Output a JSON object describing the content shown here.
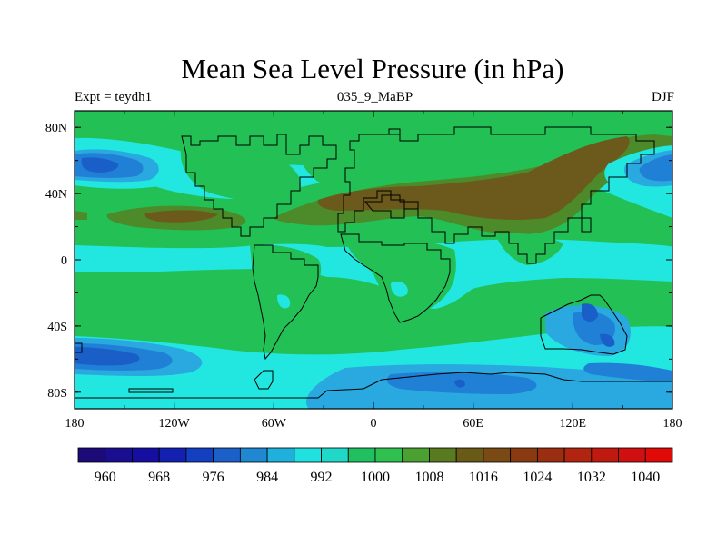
{
  "map": {
    "title": "Mean Sea Level Pressure (in hPa)",
    "left_label": "Expt = teydh1",
    "center_label": "035_9_MaBP",
    "right_label": "DJF",
    "x_ticks": [
      "180",
      "120W",
      "60W",
      "0",
      "60E",
      "120E",
      "180"
    ],
    "y_ticks": [
      "80N",
      "40N",
      "0",
      "40S",
      "80S"
    ],
    "lon_range": [
      -180,
      180
    ],
    "lat_range": [
      -90,
      90
    ]
  },
  "colorbar": {
    "labels": [
      "960",
      "968",
      "976",
      "984",
      "992",
      "1000",
      "1008",
      "1016",
      "1024",
      "1032",
      "1040"
    ],
    "colors": [
      "#1b0a78",
      "#1a0e90",
      "#160ea0",
      "#1420b0",
      "#1240c0",
      "#1a60c8",
      "#2088d0",
      "#20b0dc",
      "#20e0e0",
      "#20d8c8",
      "#20c060",
      "#30c050",
      "#4aa030",
      "#5a7a20",
      "#6a5a18",
      "#7a4a14",
      "#8a3a10",
      "#9a2e10",
      "#b02410",
      "#c01a10",
      "#d01010",
      "#e00a08"
    ],
    "band_ranges": {
      "deep_low": "< 976",
      "low": "976-992",
      "mid_low": "992-1000",
      "mid": "1000-1016",
      "high": "1016-1024"
    }
  },
  "fill_colors": {
    "ocean_cyan": "#22e6e0",
    "green": "#22c055",
    "olive": "#4d8a2a",
    "brown": "#6b5a1c",
    "blue_light": "#2aa8e0",
    "blue_mid": "#1f80d6",
    "blue_dark": "#1a5ec8",
    "navy": "#1436b0"
  }
}
